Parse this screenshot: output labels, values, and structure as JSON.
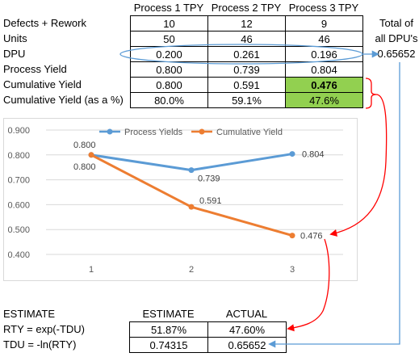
{
  "table": {
    "columns": [
      "Process 1 TPY",
      "Process 2 TPY",
      "Process 3 TPY"
    ],
    "rows": [
      {
        "label": "Defects + Rework",
        "values": [
          "10",
          "12",
          "9"
        ]
      },
      {
        "label": "Units",
        "values": [
          "50",
          "46",
          "46"
        ]
      },
      {
        "label": "DPU",
        "values": [
          "0.200",
          "0.261",
          "0.196"
        ]
      },
      {
        "label": "Process Yield",
        "values": [
          "0.800",
          "0.739",
          "0.804"
        ]
      },
      {
        "label": "Cumulative Yield",
        "values": [
          "0.800",
          "0.591",
          "0.476"
        ]
      },
      {
        "label": "Cumulative Yield (as a %)",
        "values": [
          "80.0%",
          "59.1%",
          "47.6%"
        ]
      }
    ],
    "highlight_color": "#92d050"
  },
  "total": {
    "label_line1": "Total of",
    "label_line2": "all DPU's",
    "value": "0.65652"
  },
  "chart_data": {
    "type": "line",
    "x": [
      1,
      2,
      3
    ],
    "x_tick_labels": [
      "1",
      "2",
      "3"
    ],
    "y_tick_labels": [
      "0.400",
      "0.500",
      "0.600",
      "0.700",
      "0.800",
      "0.900"
    ],
    "ylim": [
      0.4,
      0.9
    ],
    "grid": "horizontal",
    "legend_position": "top",
    "series": [
      {
        "name": "Process Yields",
        "values": [
          0.8,
          0.739,
          0.804
        ],
        "labels": [
          "0.800",
          "0.739",
          "0.804"
        ],
        "color": "#5b9bd5"
      },
      {
        "name": "Cumulative Yield",
        "values": [
          0.8,
          0.591,
          0.476
        ],
        "labels": [
          "0.800",
          "0.591",
          "0.476"
        ],
        "color": "#ed7d31"
      }
    ]
  },
  "estimate": {
    "title": "ESTIMATE",
    "col_estimate": "ESTIMATE",
    "col_actual": "ACTUAL",
    "rows": [
      {
        "label": "RTY = exp(-TDU)",
        "estimate": "51.87%",
        "actual": "47.60%"
      },
      {
        "label": "TDU = -ln(RTY)",
        "estimate": "0.74315",
        "actual": "0.65652"
      }
    ]
  },
  "arrow_color": "#ff0000",
  "link_color": "#5b9bd5"
}
